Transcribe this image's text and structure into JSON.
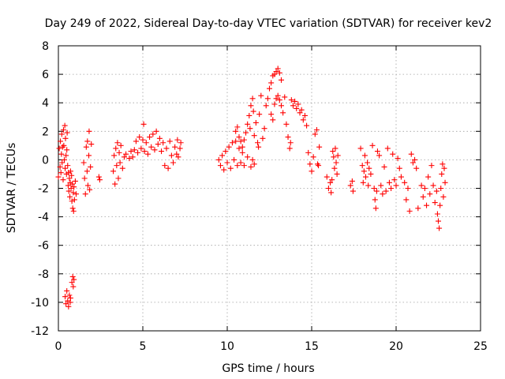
{
  "chart_data": {
    "type": "scatter",
    "title": "Day 249 of 2022, Sidereal Day-to-day VTEC variation (SDTVAR) for receiver kev2",
    "xlabel": "GPS time / hours",
    "ylabel": "SDTVAR / TECUs",
    "xlim": [
      0,
      25
    ],
    "ylim": [
      -12,
      8
    ],
    "xticks": [
      0,
      5,
      10,
      15,
      20,
      25
    ],
    "yticks": [
      -12,
      -10,
      -8,
      -6,
      -4,
      -2,
      0,
      2,
      4,
      6,
      8
    ],
    "grid": true,
    "marker": "+",
    "marker_color": "#ff0000",
    "series": [
      {
        "name": "SDTVAR",
        "points": [
          [
            0.0,
            -1.2
          ],
          [
            0.05,
            0.8
          ],
          [
            0.1,
            -0.5
          ],
          [
            0.12,
            1.3
          ],
          [
            0.15,
            -0.9
          ],
          [
            0.18,
            0.4
          ],
          [
            0.2,
            1.8
          ],
          [
            0.22,
            -0.2
          ],
          [
            0.25,
            0.9
          ],
          [
            0.28,
            -1.4
          ],
          [
            0.3,
            2.1
          ],
          [
            0.32,
            1.0
          ],
          [
            0.35,
            0.0
          ],
          [
            0.38,
            2.4
          ],
          [
            0.4,
            -0.6
          ],
          [
            0.42,
            1.5
          ],
          [
            0.45,
            0.3
          ],
          [
            0.48,
            -1.0
          ],
          [
            0.5,
            0.7
          ],
          [
            0.52,
            1.9
          ],
          [
            0.55,
            -0.4
          ],
          [
            0.58,
            -1.8
          ],
          [
            0.6,
            -0.9
          ],
          [
            0.62,
            -2.2
          ],
          [
            0.65,
            -1.3
          ],
          [
            0.68,
            -2.6
          ],
          [
            0.7,
            -1.6
          ],
          [
            0.72,
            -0.8
          ],
          [
            0.75,
            -2.0
          ],
          [
            0.78,
            -1.1
          ],
          [
            0.8,
            -2.9
          ],
          [
            0.82,
            -1.7
          ],
          [
            0.85,
            -3.4
          ],
          [
            0.88,
            -2.3
          ],
          [
            0.9,
            -3.6
          ],
          [
            0.92,
            -1.9
          ],
          [
            0.95,
            -2.8
          ],
          [
            1.0,
            -1.5
          ],
          [
            1.05,
            -2.4
          ],
          [
            0.4,
            -9.6
          ],
          [
            0.45,
            -10.1
          ],
          [
            0.5,
            -9.2
          ],
          [
            0.55,
            -9.9
          ],
          [
            0.6,
            -10.3
          ],
          [
            0.65,
            -9.5
          ],
          [
            0.7,
            -10.0
          ],
          [
            0.72,
            -9.7
          ],
          [
            0.8,
            -8.6
          ],
          [
            0.85,
            -8.2
          ],
          [
            0.88,
            -8.9
          ],
          [
            0.92,
            -8.4
          ],
          [
            1.5,
            -0.2
          ],
          [
            1.55,
            -1.3
          ],
          [
            1.6,
            -2.4
          ],
          [
            1.65,
            0.9
          ],
          [
            1.7,
            -0.8
          ],
          [
            1.72,
            1.3
          ],
          [
            1.75,
            -1.8
          ],
          [
            1.8,
            0.3
          ],
          [
            1.82,
            2.0
          ],
          [
            1.85,
            -2.1
          ],
          [
            1.9,
            -0.5
          ],
          [
            1.95,
            1.1
          ],
          [
            2.4,
            -1.2
          ],
          [
            2.45,
            -1.4
          ],
          [
            3.25,
            -0.8
          ],
          [
            3.3,
            0.3
          ],
          [
            3.35,
            -1.7
          ],
          [
            3.4,
            0.8
          ],
          [
            3.45,
            -0.4
          ],
          [
            3.5,
            1.2
          ],
          [
            3.55,
            -1.3
          ],
          [
            3.6,
            0.5
          ],
          [
            3.65,
            -0.2
          ],
          [
            3.7,
            1.0
          ],
          [
            3.8,
            -0.6
          ],
          [
            3.9,
            0.2
          ],
          [
            4.0,
            0.4
          ],
          [
            4.2,
            0.1
          ],
          [
            4.3,
            0.6
          ],
          [
            4.4,
            0.2
          ],
          [
            4.5,
            0.7
          ],
          [
            4.6,
            1.3
          ],
          [
            4.7,
            0.5
          ],
          [
            4.8,
            1.6
          ],
          [
            4.9,
            0.8
          ],
          [
            5.0,
            1.4
          ],
          [
            5.05,
            2.5
          ],
          [
            5.1,
            0.6
          ],
          [
            5.2,
            1.2
          ],
          [
            5.3,
            0.4
          ],
          [
            5.4,
            1.6
          ],
          [
            5.5,
            0.9
          ],
          [
            5.6,
            1.8
          ],
          [
            5.7,
            0.7
          ],
          [
            5.8,
            2.0
          ],
          [
            5.9,
            1.1
          ],
          [
            6.0,
            1.5
          ],
          [
            6.1,
            0.6
          ],
          [
            6.2,
            1.2
          ],
          [
            6.3,
            -0.4
          ],
          [
            6.4,
            0.8
          ],
          [
            6.5,
            -0.6
          ],
          [
            6.6,
            1.3
          ],
          [
            6.7,
            0.3
          ],
          [
            6.8,
            -0.2
          ],
          [
            6.9,
            0.9
          ],
          [
            7.0,
            0.4
          ],
          [
            7.05,
            1.4
          ],
          [
            7.1,
            0.2
          ],
          [
            7.2,
            0.8
          ],
          [
            7.25,
            1.2
          ],
          [
            9.5,
            0.0
          ],
          [
            9.6,
            -0.4
          ],
          [
            9.7,
            0.3
          ],
          [
            9.8,
            -0.7
          ],
          [
            9.9,
            0.6
          ],
          [
            10.0,
            -0.2
          ],
          [
            10.1,
            0.9
          ],
          [
            10.2,
            -0.6
          ],
          [
            10.3,
            1.2
          ],
          [
            10.4,
            0.0
          ],
          [
            10.5,
            1.3
          ],
          [
            10.6,
            -0.4
          ],
          [
            10.7,
            0.8
          ],
          [
            10.8,
            -0.2
          ],
          [
            10.9,
            0.5
          ],
          [
            11.0,
            -0.4
          ],
          [
            11.2,
            0.2
          ],
          [
            11.4,
            -0.5
          ],
          [
            11.5,
            0.0
          ],
          [
            11.6,
            -0.3
          ],
          [
            10.5,
            2.0
          ],
          [
            10.6,
            2.3
          ],
          [
            10.7,
            1.6
          ],
          [
            10.8,
            1.3
          ],
          [
            10.9,
            0.9
          ],
          [
            11.0,
            1.4
          ],
          [
            11.1,
            1.9
          ],
          [
            11.2,
            2.5
          ],
          [
            11.3,
            3.1
          ],
          [
            11.35,
            2.2
          ],
          [
            11.4,
            3.8
          ],
          [
            11.5,
            4.3
          ],
          [
            11.55,
            3.4
          ],
          [
            11.6,
            1.7
          ],
          [
            11.7,
            2.6
          ],
          [
            11.8,
            1.2
          ],
          [
            11.85,
            0.9
          ],
          [
            11.9,
            3.2
          ],
          [
            12.0,
            4.5
          ],
          [
            12.1,
            1.5
          ],
          [
            12.2,
            2.2
          ],
          [
            12.3,
            3.8
          ],
          [
            12.4,
            4.3
          ],
          [
            12.5,
            5.0
          ],
          [
            12.6,
            5.4
          ],
          [
            12.7,
            5.9
          ],
          [
            12.8,
            6.0
          ],
          [
            12.9,
            6.2
          ],
          [
            13.0,
            6.4
          ],
          [
            13.1,
            6.1
          ],
          [
            13.2,
            5.6
          ],
          [
            12.6,
            3.2
          ],
          [
            12.7,
            2.8
          ],
          [
            12.8,
            3.9
          ],
          [
            12.9,
            4.3
          ],
          [
            13.0,
            4.5
          ],
          [
            13.1,
            4.2
          ],
          [
            13.2,
            3.8
          ],
          [
            13.3,
            3.3
          ],
          [
            13.4,
            4.4
          ],
          [
            13.5,
            2.5
          ],
          [
            13.6,
            1.6
          ],
          [
            13.7,
            0.8
          ],
          [
            13.75,
            1.2
          ],
          [
            13.8,
            4.2
          ],
          [
            13.9,
            3.8
          ],
          [
            14.0,
            4.1
          ],
          [
            14.1,
            3.6
          ],
          [
            14.2,
            3.9
          ],
          [
            14.3,
            3.3
          ],
          [
            14.4,
            3.5
          ],
          [
            14.5,
            2.8
          ],
          [
            14.6,
            3.1
          ],
          [
            14.7,
            2.4
          ],
          [
            14.8,
            0.5
          ],
          [
            14.9,
            -0.3
          ],
          [
            15.0,
            -0.8
          ],
          [
            15.1,
            0.2
          ],
          [
            15.2,
            1.8
          ],
          [
            15.3,
            2.1
          ],
          [
            15.35,
            -0.3
          ],
          [
            15.4,
            -0.4
          ],
          [
            15.45,
            0.9
          ],
          [
            15.9,
            -1.2
          ],
          [
            16.0,
            -2.0
          ],
          [
            16.1,
            -1.6
          ],
          [
            16.15,
            -2.3
          ],
          [
            16.2,
            -1.4
          ],
          [
            16.25,
            0.6
          ],
          [
            16.3,
            0.2
          ],
          [
            16.35,
            -0.6
          ],
          [
            16.4,
            0.8
          ],
          [
            16.45,
            -0.2
          ],
          [
            16.5,
            -1.0
          ],
          [
            16.55,
            0.3
          ],
          [
            17.3,
            -1.8
          ],
          [
            17.4,
            -1.5
          ],
          [
            17.45,
            -2.2
          ],
          [
            17.9,
            0.8
          ],
          [
            18.0,
            -0.4
          ],
          [
            18.05,
            -1.6
          ],
          [
            18.1,
            -0.8
          ],
          [
            18.15,
            0.3
          ],
          [
            18.2,
            -1.2
          ],
          [
            18.3,
            -0.2
          ],
          [
            18.35,
            -1.8
          ],
          [
            18.4,
            -0.6
          ],
          [
            18.5,
            -1.0
          ],
          [
            18.6,
            1.0
          ],
          [
            18.7,
            -2.0
          ],
          [
            18.75,
            -2.8
          ],
          [
            18.8,
            -3.4
          ],
          [
            18.85,
            -2.2
          ],
          [
            18.9,
            0.6
          ],
          [
            19.0,
            0.3
          ],
          [
            19.1,
            -1.8
          ],
          [
            19.2,
            -2.4
          ],
          [
            19.3,
            -0.5
          ],
          [
            19.4,
            -2.2
          ],
          [
            19.5,
            0.8
          ],
          [
            19.6,
            -1.6
          ],
          [
            19.7,
            -2.0
          ],
          [
            19.8,
            0.4
          ],
          [
            19.9,
            -1.4
          ],
          [
            20.0,
            -1.8
          ],
          [
            20.1,
            0.1
          ],
          [
            20.2,
            -0.6
          ],
          [
            20.3,
            -1.2
          ],
          [
            20.5,
            -1.6
          ],
          [
            20.6,
            -2.8
          ],
          [
            20.7,
            -2.0
          ],
          [
            20.8,
            -3.6
          ],
          [
            20.9,
            0.4
          ],
          [
            21.0,
            -0.2
          ],
          [
            21.1,
            0.0
          ],
          [
            21.2,
            -0.6
          ],
          [
            21.3,
            -3.4
          ],
          [
            21.5,
            -1.8
          ],
          [
            21.6,
            -2.6
          ],
          [
            21.7,
            -2.0
          ],
          [
            21.8,
            -3.2
          ],
          [
            21.9,
            -1.2
          ],
          [
            22.0,
            -2.4
          ],
          [
            22.1,
            -0.4
          ],
          [
            22.2,
            -1.8
          ],
          [
            22.3,
            -3.0
          ],
          [
            22.4,
            -2.2
          ],
          [
            22.45,
            -3.8
          ],
          [
            22.5,
            -4.3
          ],
          [
            22.55,
            -4.8
          ],
          [
            22.6,
            -3.2
          ],
          [
            22.65,
            -2.0
          ],
          [
            22.7,
            -1.0
          ],
          [
            22.75,
            -0.3
          ],
          [
            22.8,
            -2.6
          ],
          [
            22.85,
            -0.6
          ],
          [
            22.9,
            -1.6
          ]
        ]
      }
    ]
  }
}
